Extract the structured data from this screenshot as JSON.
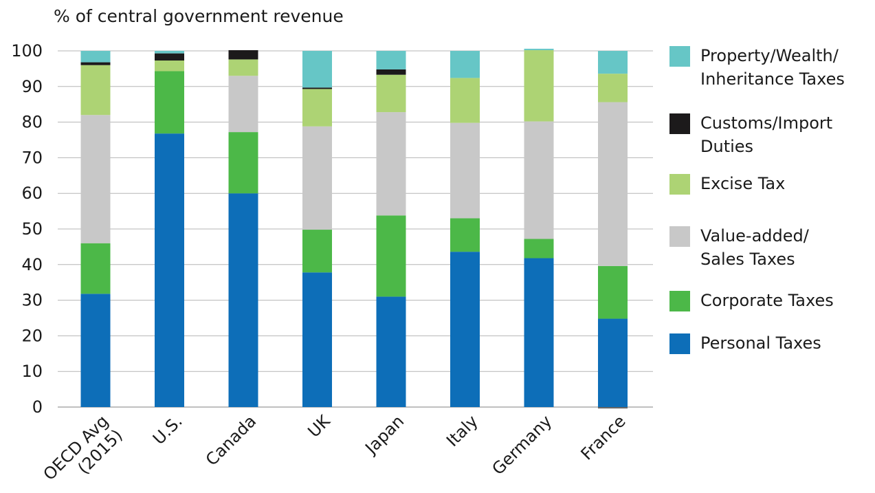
{
  "chart_data": {
    "type": "bar",
    "stacked": true,
    "ylabel": "% of central government revenue",
    "ylim": [
      0,
      100
    ],
    "yticks": [
      0,
      10,
      20,
      30,
      40,
      50,
      60,
      70,
      80,
      90,
      100
    ],
    "grid": true,
    "legend_position": "right",
    "categories": [
      "OECD Avg\n(2015)",
      "U.S.",
      "Canada",
      "UK",
      "Japan",
      "Italy",
      "Germany",
      "France"
    ],
    "series": [
      {
        "name": "Personal Taxes",
        "color": "#0d6eb8",
        "values": [
          31.8,
          76.8,
          60.0,
          37.8,
          31.0,
          43.6,
          41.8,
          24.8
        ]
      },
      {
        "name": "Corporate Taxes",
        "color": "#4cb848",
        "values": [
          14.2,
          17.5,
          17.2,
          12.0,
          22.8,
          9.4,
          5.4,
          14.8
        ]
      },
      {
        "name": "Value-added/\nSales Taxes",
        "color": "#c8c8c8",
        "values": [
          36.0,
          0,
          15.8,
          29.0,
          29.0,
          26.8,
          33.0,
          46.0
        ]
      },
      {
        "name": "Excise Tax",
        "color": "#add374",
        "values": [
          14.0,
          3.0,
          4.6,
          10.5,
          10.5,
          12.6,
          20.0,
          8.0
        ]
      },
      {
        "name": "Customs/Import\nDuties",
        "color": "#1c1a1b",
        "values": [
          0.8,
          2.0,
          2.6,
          0.4,
          1.5,
          0,
          0,
          0
        ]
      },
      {
        "name": "Property/Wealth/\nInheritance Taxes",
        "color": "#66c6c6",
        "values": [
          3.2,
          0.7,
          0,
          10.3,
          5.2,
          7.6,
          0.4,
          6.4
        ]
      }
    ],
    "negative_values": {
      "France": -0.4
    }
  }
}
